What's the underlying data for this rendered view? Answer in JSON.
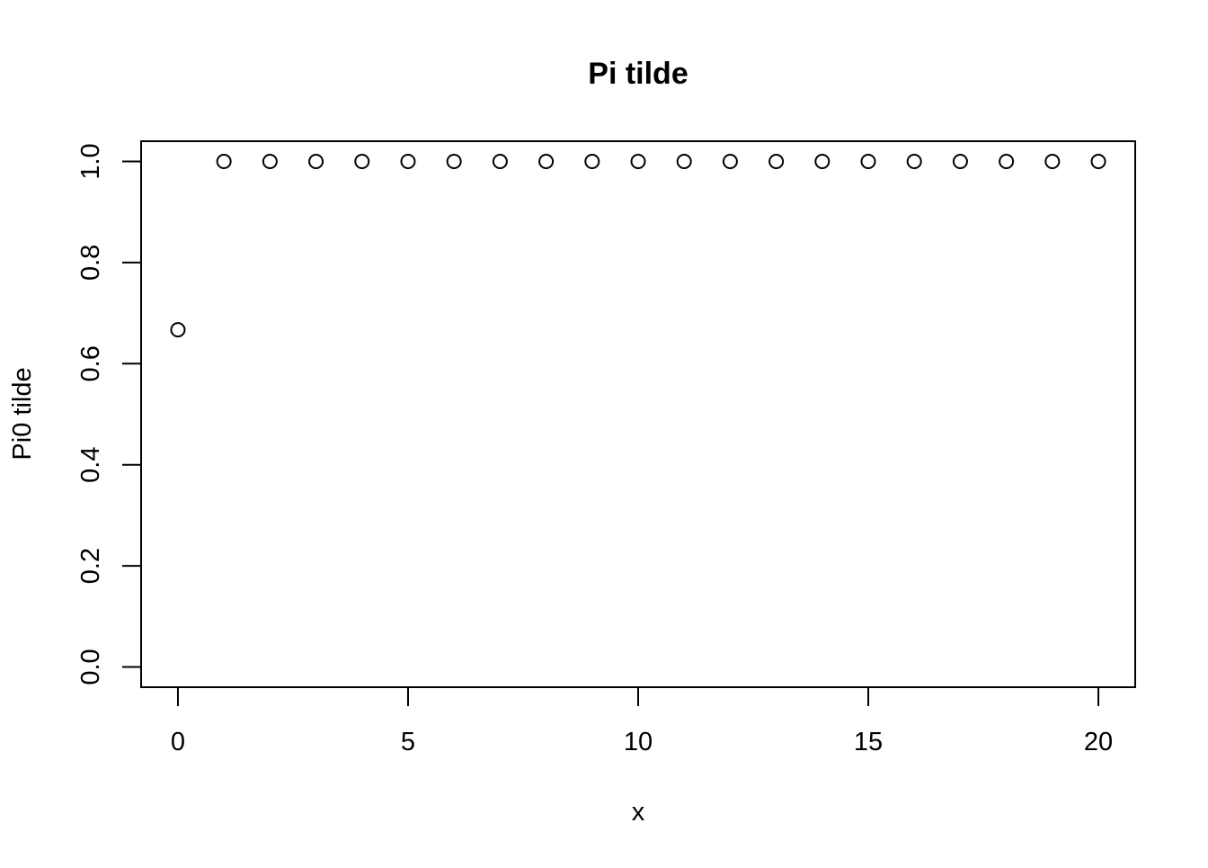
{
  "chart_data": {
    "type": "scatter",
    "title": "Pi tilde",
    "xlabel": "x",
    "ylabel": "Pi0 tilde",
    "x": [
      0,
      1,
      2,
      3,
      4,
      5,
      6,
      7,
      8,
      9,
      10,
      11,
      12,
      13,
      14,
      15,
      16,
      17,
      18,
      19,
      20
    ],
    "y": [
      0.667,
      1,
      1,
      1,
      1,
      1,
      1,
      1,
      1,
      1,
      1,
      1,
      1,
      1,
      1,
      1,
      1,
      1,
      1,
      1,
      1
    ],
    "xlim": [
      -0.8,
      20.8
    ],
    "ylim": [
      -0.04,
      1.04
    ],
    "xticks": [
      0,
      5,
      10,
      15,
      20
    ],
    "xtick_labels": [
      "0",
      "5",
      "10",
      "15",
      "20"
    ],
    "yticks": [
      0,
      0.2,
      0.4,
      0.6,
      0.8,
      1.0
    ],
    "ytick_labels": [
      "0.0",
      "0.2",
      "0.4",
      "0.6",
      "0.8",
      "1.0"
    ],
    "marker": "open-circle",
    "grid": false,
    "legend": "none"
  }
}
